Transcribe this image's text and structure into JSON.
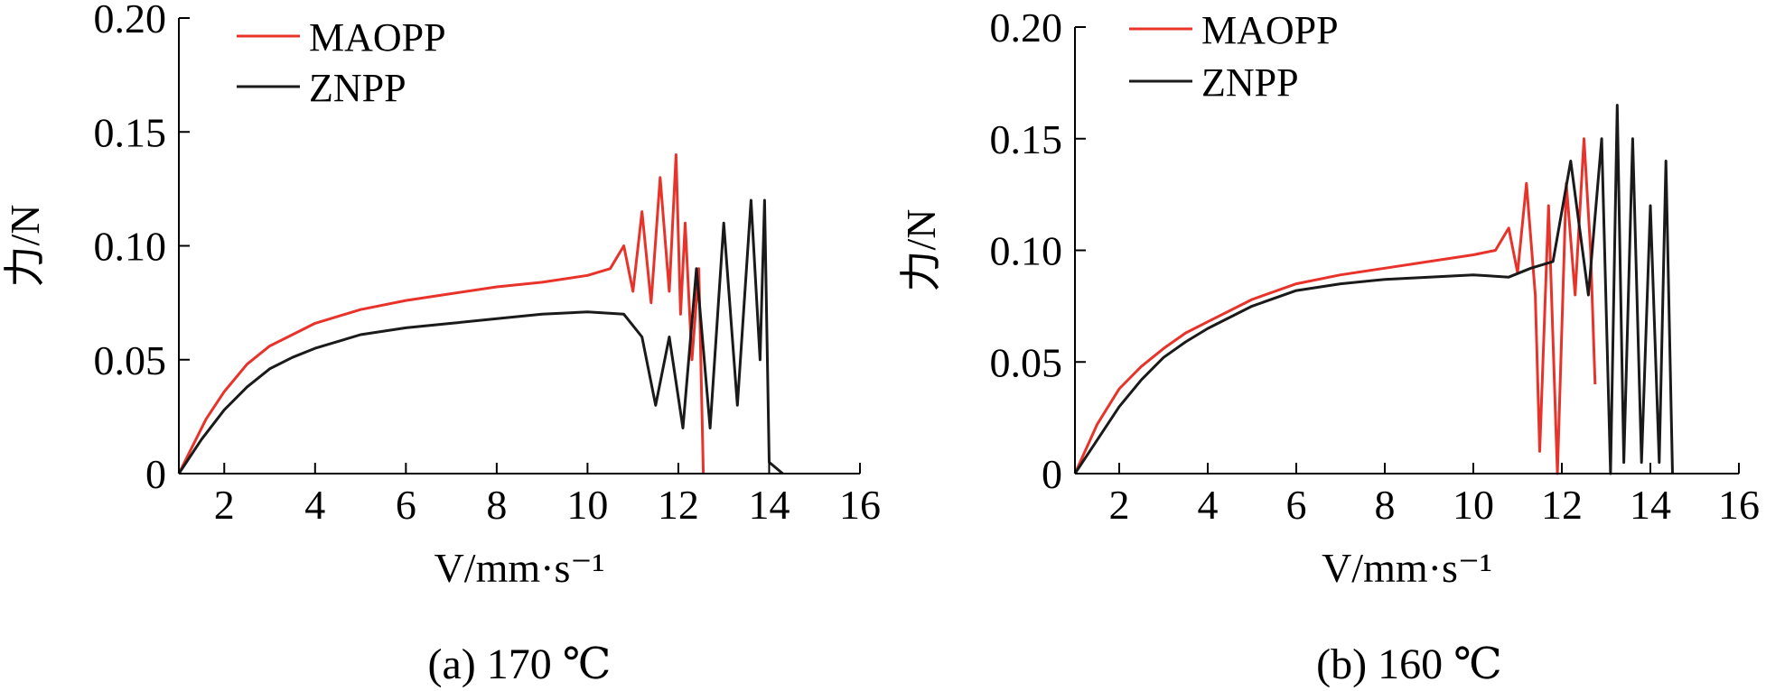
{
  "chart_data": [
    {
      "type": "line",
      "caption": "(a) 170 ℃",
      "ylabel": "力/N",
      "xlabel": "V/mm·s⁻¹",
      "xlim": [
        1,
        16
      ],
      "ylim": [
        0,
        0.2
      ],
      "xticks": [
        "2",
        "4",
        "6",
        "8",
        "10",
        "12",
        "14",
        "16"
      ],
      "yticks": [
        "0",
        "0.05",
        "0.10",
        "0.15",
        "0.20"
      ],
      "legend_position": "top-left",
      "grid": false,
      "series": [
        {
          "name": "MAOPP",
          "color": "#e8332a",
          "x": [
            1.0,
            1.3,
            1.6,
            2.0,
            2.5,
            3.0,
            3.5,
            4.0,
            5.0,
            6.0,
            7.0,
            8.0,
            9.0,
            10.0,
            10.5,
            10.8,
            11.0,
            11.2,
            11.4,
            11.6,
            11.8,
            11.95,
            12.05,
            12.15,
            12.3,
            12.45,
            12.55
          ],
          "y": [
            0.0,
            0.012,
            0.024,
            0.036,
            0.048,
            0.056,
            0.061,
            0.066,
            0.072,
            0.076,
            0.079,
            0.082,
            0.084,
            0.087,
            0.09,
            0.1,
            0.08,
            0.115,
            0.075,
            0.13,
            0.08,
            0.14,
            0.07,
            0.11,
            0.05,
            0.09,
            0.0
          ]
        },
        {
          "name": "ZNPP",
          "color": "#1a1a1a",
          "x": [
            1.0,
            1.5,
            2.0,
            2.5,
            3.0,
            3.5,
            4.0,
            5.0,
            6.0,
            7.0,
            8.0,
            9.0,
            10.0,
            10.8,
            11.2,
            11.5,
            11.8,
            12.1,
            12.4,
            12.7,
            13.0,
            13.3,
            13.6,
            13.8,
            13.9,
            14.0,
            14.3
          ],
          "y": [
            0.0,
            0.015,
            0.028,
            0.038,
            0.046,
            0.051,
            0.055,
            0.061,
            0.064,
            0.066,
            0.068,
            0.07,
            0.071,
            0.07,
            0.06,
            0.03,
            0.06,
            0.02,
            0.09,
            0.02,
            0.11,
            0.03,
            0.12,
            0.05,
            0.12,
            0.005,
            0.0
          ]
        }
      ]
    },
    {
      "type": "line",
      "caption": "(b) 160 ℃",
      "ylabel": "力/N",
      "xlabel": "V/mm·s⁻¹",
      "xlim": [
        1,
        16
      ],
      "ylim": [
        0,
        0.2
      ],
      "xticks": [
        "2",
        "4",
        "6",
        "8",
        "10",
        "12",
        "14",
        "16"
      ],
      "yticks": [
        "0",
        "0.05",
        "0.10",
        "0.15",
        "0.20"
      ],
      "legend_position": "top-left",
      "grid": false,
      "series": [
        {
          "name": "MAOPP",
          "color": "#e8332a",
          "x": [
            1.0,
            1.5,
            2.0,
            2.5,
            3.0,
            3.5,
            4.0,
            5.0,
            6.0,
            7.0,
            8.0,
            9.0,
            10.0,
            10.5,
            10.8,
            11.0,
            11.2,
            11.4,
            11.5,
            11.7,
            11.9,
            12.1,
            12.3,
            12.5,
            12.65,
            12.75
          ],
          "y": [
            0.0,
            0.022,
            0.038,
            0.048,
            0.056,
            0.063,
            0.068,
            0.078,
            0.085,
            0.089,
            0.092,
            0.095,
            0.098,
            0.1,
            0.11,
            0.09,
            0.13,
            0.08,
            0.01,
            0.12,
            0.0,
            0.13,
            0.08,
            0.15,
            0.1,
            0.04
          ]
        },
        {
          "name": "ZNPP",
          "color": "#1a1a1a",
          "x": [
            1.0,
            1.5,
            2.0,
            2.5,
            3.0,
            3.5,
            4.0,
            5.0,
            6.0,
            7.0,
            8.0,
            9.0,
            10.0,
            10.8,
            11.3,
            11.8,
            12.2,
            12.6,
            12.9,
            13.1,
            13.25,
            13.4,
            13.6,
            13.8,
            14.0,
            14.2,
            14.35,
            14.5
          ],
          "y": [
            0.0,
            0.015,
            0.03,
            0.042,
            0.052,
            0.059,
            0.065,
            0.075,
            0.082,
            0.085,
            0.087,
            0.088,
            0.089,
            0.088,
            0.092,
            0.095,
            0.14,
            0.08,
            0.15,
            0.0,
            0.165,
            0.005,
            0.15,
            0.005,
            0.12,
            0.005,
            0.14,
            0.0
          ]
        }
      ]
    }
  ]
}
